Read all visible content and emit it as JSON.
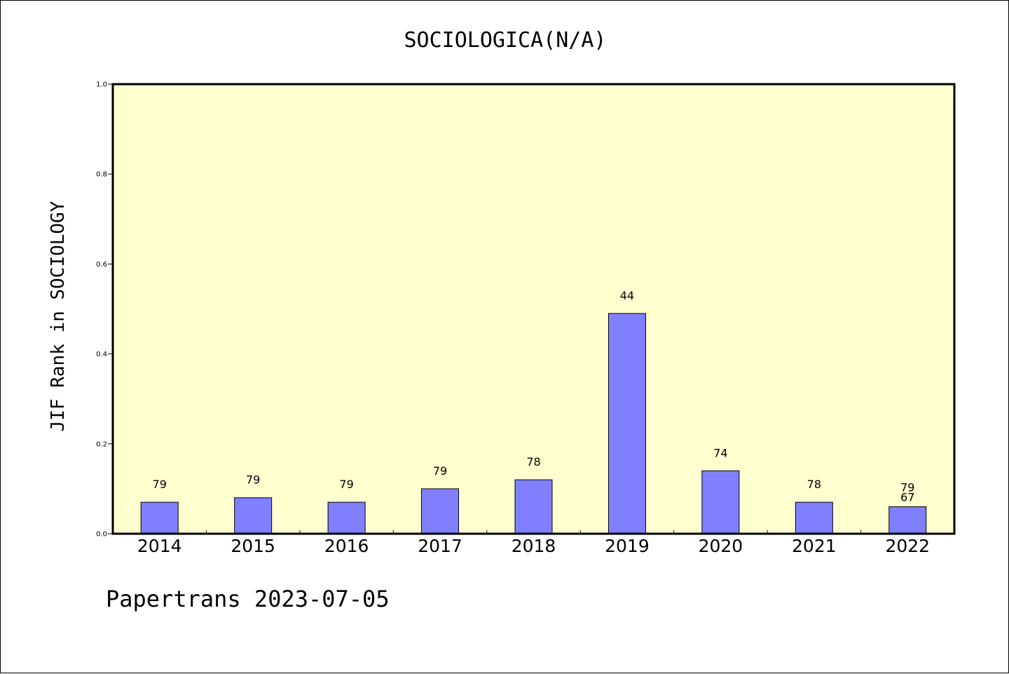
{
  "chart_data": {
    "type": "bar",
    "title": "SOCIOLOGICA(N/A)",
    "xlabel": "",
    "ylabel": "JIF Rank in SOCIOLOGY",
    "ylim": [
      0,
      1.0
    ],
    "yticks": [
      "0.0",
      "0.2",
      "0.4",
      "0.6",
      "0.8",
      "1.0"
    ],
    "categories": [
      "2014",
      "2015",
      "2016",
      "2017",
      "2018",
      "2019",
      "2020",
      "2021",
      "2022"
    ],
    "values": [
      0.07,
      0.08,
      0.07,
      0.1,
      0.12,
      0.49,
      0.14,
      0.07,
      0.06
    ],
    "labels": [
      "79",
      "79",
      "79",
      "79",
      "78",
      "44",
      "74",
      "78",
      "79\n67"
    ],
    "grid": false,
    "colors": {
      "plot_background": "#FFFFD0",
      "bar_fill": "#8080FF",
      "bar_stroke": "#000000"
    }
  },
  "footer": {
    "credit": "Papertrans 2023-07-05"
  }
}
